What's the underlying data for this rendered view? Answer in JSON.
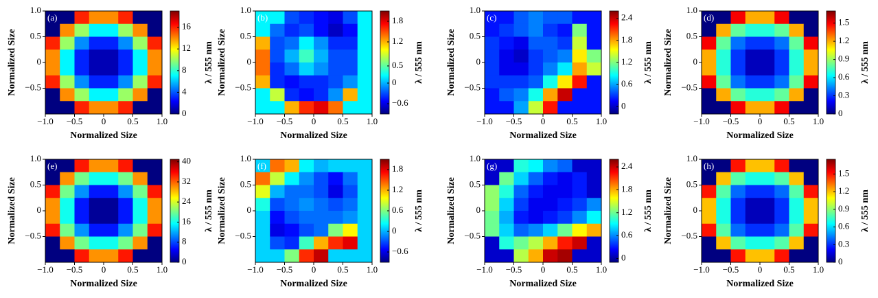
{
  "chart_data": [
    {
      "type": "heatmap",
      "label": "(a)",
      "xlabel": "Normalized Size",
      "ylabel": "Normalized Size",
      "colorbar_label": "λ / 555 nm",
      "colormap": "jet",
      "xlim": [
        -1,
        1
      ],
      "ylim": [
        -1,
        1
      ],
      "xticks": [
        {
          "value": -1,
          "label": "−1.0"
        },
        {
          "value": -0.5,
          "label": "−0.5"
        },
        0,
        0.5,
        {
          "value": 1,
          "label": "1.0"
        }
      ],
      "yticks": [
        {
          "value": -0.5,
          "label": "−0.5"
        },
        0,
        0.5,
        {
          "value": 1,
          "label": "1.0"
        }
      ],
      "clim": [
        0,
        19
      ],
      "cticks": [
        0,
        4,
        8,
        12,
        16
      ],
      "z": [
        [
          0,
          0,
          16,
          14,
          14,
          16,
          0,
          0
        ],
        [
          0,
          14,
          10,
          7,
          7,
          10,
          14,
          0
        ],
        [
          16,
          10,
          5,
          3,
          3,
          5,
          10,
          16
        ],
        [
          14,
          7,
          3,
          1,
          1,
          3,
          7,
          14
        ],
        [
          14,
          7,
          3,
          1,
          1,
          3,
          7,
          14
        ],
        [
          16,
          10,
          5,
          3,
          3,
          5,
          10,
          16
        ],
        [
          0,
          14,
          10,
          7,
          7,
          10,
          14,
          0
        ],
        [
          0,
          0,
          16,
          14,
          14,
          16,
          0,
          0
        ]
      ]
    },
    {
      "type": "heatmap",
      "label": "(b)",
      "xlabel": "Normalized Size",
      "ylabel": "Normalized Size",
      "colorbar_label": "λ / 555 nm",
      "colormap": "jet",
      "xlim": [
        -1,
        1
      ],
      "ylim": [
        -1,
        1
      ],
      "xticks": [
        {
          "value": -1,
          "label": "−1.0"
        },
        {
          "value": -0.5,
          "label": "−0.5"
        },
        0,
        0.5,
        {
          "value": 1,
          "label": "1.0"
        }
      ],
      "yticks": [
        {
          "value": -0.5,
          "label": "−0.5"
        },
        0,
        0.5,
        {
          "value": 1,
          "label": "1.0"
        }
      ],
      "clim": [
        -0.9,
        2.1
      ],
      "cticks": [
        {
          "value": -0.6,
          "label": "−0.6"
        },
        0,
        0.5,
        1.2,
        1.8
      ],
      "z": [
        [
          0.2,
          0.2,
          -0.3,
          -0.4,
          -0.5,
          -0.6,
          -0.3,
          0.2
        ],
        [
          0.2,
          -0.2,
          -0.4,
          -0.3,
          -0.5,
          -0.7,
          -0.5,
          0.2
        ],
        [
          1.2,
          -0.3,
          -0.2,
          0.2,
          -0.1,
          -0.4,
          -0.4,
          0.2
        ],
        [
          1.4,
          -0.3,
          0,
          0.4,
          0,
          -0.3,
          -0.3,
          0.2
        ],
        [
          1.4,
          -0.4,
          -0.2,
          0.1,
          -0.1,
          -0.3,
          -0.3,
          0.2
        ],
        [
          1.2,
          -0.4,
          -0.5,
          -0.4,
          -0.4,
          -0.3,
          -0.1,
          0.2
        ],
        [
          0.2,
          0.8,
          -0.4,
          -0.5,
          -0.4,
          -0.1,
          1.2,
          0.2
        ],
        [
          0.2,
          0.2,
          1.2,
          1.6,
          1.8,
          1.4,
          0.2,
          0.2
        ]
      ]
    },
    {
      "type": "heatmap",
      "label": "(c)",
      "xlabel": "Normalized Size",
      "ylabel": "Normalized Size",
      "colorbar_label": "λ / 555 nm",
      "colormap": "jet",
      "xlim": [
        -1,
        1
      ],
      "ylim": [
        -1,
        1
      ],
      "xticks": [
        {
          "value": -1,
          "label": "−1.0"
        },
        {
          "value": -0.5,
          "label": "−0.5"
        },
        0,
        0.5,
        {
          "value": 1,
          "label": "1.0"
        }
      ],
      "yticks": [
        {
          "value": -0.5,
          "label": "−0.5"
        },
        0,
        0.5,
        {
          "value": 1,
          "label": "1.0"
        }
      ],
      "clim": [
        -0.2,
        2.6
      ],
      "cticks": [
        0,
        0.6,
        1.2,
        1.8,
        2.4
      ],
      "z": [
        [
          0.2,
          0.2,
          0.4,
          0.5,
          0.4,
          0.4,
          0.2,
          0.2
        ],
        [
          0.2,
          0.3,
          0.4,
          0.5,
          0.3,
          0.2,
          1.2,
          0.2
        ],
        [
          0.3,
          0.2,
          0.1,
          0.4,
          0.4,
          0.3,
          1.4,
          0.2
        ],
        [
          0.3,
          0.1,
          0,
          0.3,
          0.4,
          0.5,
          1.6,
          1.2
        ],
        [
          0.3,
          0.1,
          0.1,
          0.3,
          0.5,
          0.8,
          1.8,
          1.4
        ],
        [
          0.3,
          0.3,
          0.3,
          0.4,
          0.9,
          1.6,
          2.2,
          0.2
        ],
        [
          0.2,
          0.4,
          0.5,
          0.9,
          1.8,
          2.4,
          0.2,
          0.2
        ],
        [
          0.2,
          0.2,
          0.6,
          1.4,
          2.2,
          0.2,
          0.2,
          0.2
        ]
      ]
    },
    {
      "type": "heatmap",
      "label": "(d)",
      "xlabel": "Normalized Size",
      "ylabel": "Normalized Size",
      "colorbar_label": "λ / 555 nm",
      "colormap": "jet",
      "xlim": [
        -1,
        1
      ],
      "ylim": [
        -1,
        1
      ],
      "xticks": [
        {
          "value": -1,
          "label": "−1.0"
        },
        {
          "value": -0.5,
          "label": "−0.5"
        },
        0,
        0.5,
        {
          "value": 1,
          "label": "1.0"
        }
      ],
      "yticks": [
        {
          "value": -0.5,
          "label": "−0.5"
        },
        0,
        0.5,
        {
          "value": 1,
          "label": "1.0"
        }
      ],
      "clim": [
        0,
        1.7
      ],
      "cticks": [
        0,
        0.3,
        0.6,
        0.9,
        1.2,
        1.5
      ],
      "z": [
        [
          0,
          0,
          1.5,
          1.2,
          1.2,
          1.5,
          0,
          0
        ],
        [
          0,
          1.2,
          0.8,
          0.7,
          0.7,
          0.8,
          1.2,
          0
        ],
        [
          1.5,
          0.8,
          0.4,
          0.3,
          0.3,
          0.4,
          0.8,
          1.5
        ],
        [
          1.2,
          0.7,
          0.3,
          0.1,
          0.1,
          0.3,
          0.7,
          1.2
        ],
        [
          1.2,
          0.7,
          0.3,
          0.1,
          0.1,
          0.3,
          0.7,
          1.2
        ],
        [
          1.5,
          0.8,
          0.4,
          0.3,
          0.3,
          0.4,
          0.8,
          1.5
        ],
        [
          0,
          1.2,
          0.8,
          0.7,
          0.7,
          0.8,
          1.2,
          0
        ],
        [
          0,
          0,
          1.5,
          1.2,
          1.2,
          1.5,
          0,
          0
        ]
      ]
    },
    {
      "type": "heatmap",
      "label": "(e)",
      "xlabel": "Normalized Size",
      "ylabel": "Normalized Size",
      "colorbar_label": "λ / 555 nm",
      "colormap": "jet",
      "xlim": [
        -1,
        1
      ],
      "ylim": [
        -1,
        1
      ],
      "xticks": [
        {
          "value": -1,
          "label": "−1.0"
        },
        {
          "value": -0.5,
          "label": "−0.5"
        },
        0,
        0.5,
        {
          "value": 1,
          "label": "1.0"
        }
      ],
      "yticks": [
        {
          "value": -0.5,
          "label": "−0.5"
        },
        0,
        0.5,
        {
          "value": 1,
          "label": "1.0"
        }
      ],
      "clim": [
        0,
        41
      ],
      "cticks": [
        0,
        8,
        16,
        24,
        32,
        40
      ],
      "z": [
        [
          0,
          0,
          35,
          30,
          30,
          35,
          0,
          0
        ],
        [
          0,
          30,
          20,
          16,
          16,
          20,
          30,
          0
        ],
        [
          35,
          20,
          11,
          6,
          6,
          11,
          20,
          35
        ],
        [
          30,
          16,
          6,
          1,
          1,
          6,
          16,
          30
        ],
        [
          30,
          16,
          6,
          1,
          1,
          6,
          16,
          30
        ],
        [
          35,
          20,
          11,
          6,
          6,
          11,
          20,
          35
        ],
        [
          0,
          30,
          20,
          16,
          16,
          20,
          30,
          0
        ],
        [
          0,
          0,
          35,
          30,
          30,
          35,
          0,
          0
        ]
      ]
    },
    {
      "type": "heatmap",
      "label": "(f)",
      "xlabel": "Normalized Size",
      "ylabel": "Normalized Size",
      "colorbar_label": "λ / 555 nm",
      "colormap": "jet",
      "xlim": [
        -1,
        1
      ],
      "ylim": [
        -1,
        1
      ],
      "xticks": [
        {
          "value": -1,
          "label": "−1.0"
        },
        {
          "value": -0.5,
          "label": "−0.5"
        },
        0,
        0.5,
        {
          "value": 1,
          "label": "1.0"
        }
      ],
      "yticks": [
        {
          "value": -0.5,
          "label": "−0.5"
        },
        0,
        0.5,
        {
          "value": 1,
          "label": "1.0"
        }
      ],
      "clim": [
        -0.9,
        2.1
      ],
      "cticks": [
        {
          "value": -0.6,
          "label": "−0.6"
        },
        0,
        0.6,
        1.2,
        1.8
      ],
      "z": [
        [
          0.1,
          1.4,
          1.2,
          0.2,
          0,
          0.1,
          0.1,
          0.1
        ],
        [
          1.4,
          0.8,
          0.2,
          -0.1,
          -0.3,
          -0.5,
          -0.2,
          0.1
        ],
        [
          0.9,
          0,
          -0.2,
          -0.2,
          -0.3,
          -0.6,
          -0.3,
          0.1
        ],
        [
          0.3,
          -0.3,
          -0.2,
          -0.1,
          -0.2,
          -0.3,
          -0.2,
          0.1
        ],
        [
          0.1,
          -0.5,
          -0.3,
          -0.2,
          -0.2,
          -0.2,
          -0.1,
          0.1
        ],
        [
          0.1,
          -0.6,
          -0.5,
          -0.3,
          -0.2,
          0.6,
          1.0,
          0.1
        ],
        [
          0.1,
          -0.3,
          -0.4,
          0.4,
          1.2,
          1.6,
          1.8,
          0.1
        ],
        [
          0.1,
          0.1,
          0.6,
          1.6,
          1.9,
          0.1,
          0.1,
          0.1
        ]
      ]
    },
    {
      "type": "heatmap",
      "label": "(g)",
      "xlabel": "Normalized Size",
      "ylabel": "Normalized Size",
      "colorbar_label": "λ / 555 nm",
      "colormap": "jet",
      "xlim": [
        -1,
        1
      ],
      "ylim": [
        -1,
        1
      ],
      "xticks": [
        {
          "value": -1,
          "label": "−1.0"
        },
        {
          "value": -0.5,
          "label": "−0.5"
        },
        0,
        0.5,
        {
          "value": 1,
          "label": "1.0"
        }
      ],
      "yticks": [
        {
          "value": -0.5,
          "label": "−0.5"
        },
        0,
        0.5,
        {
          "value": 1,
          "label": "1.0"
        }
      ],
      "clim": [
        -0.1,
        2.6
      ],
      "cticks": [
        0,
        0.6,
        1.2,
        1.8,
        2.4
      ],
      "z": [
        [
          0.1,
          0.1,
          1.0,
          0.9,
          0.6,
          0.5,
          0.1,
          0.1
        ],
        [
          0.1,
          1.2,
          0.8,
          0.5,
          0.3,
          0.2,
          0.3,
          0.1
        ],
        [
          1.3,
          1.0,
          0.5,
          0.3,
          0.2,
          0.2,
          0.3,
          0.1
        ],
        [
          1.3,
          0.8,
          0.4,
          0.2,
          0.2,
          0.3,
          0.4,
          0.6
        ],
        [
          1.2,
          0.7,
          0.3,
          0.2,
          0.3,
          0.4,
          0.6,
          0.9
        ],
        [
          1.2,
          0.8,
          0.5,
          0.6,
          0.8,
          1.2,
          1.6,
          1.8
        ],
        [
          0.1,
          1.0,
          1.2,
          1.4,
          1.8,
          2.2,
          2.4,
          0.1
        ],
        [
          0.1,
          0.1,
          1.4,
          1.8,
          2.4,
          2.5,
          0.1,
          0.1
        ]
      ]
    },
    {
      "type": "heatmap",
      "label": "(h)",
      "xlabel": "Normalized Size",
      "ylabel": "Normalized Size",
      "colorbar_label": "λ / 555 nm",
      "colormap": "jet",
      "xlim": [
        -1,
        1
      ],
      "ylim": [
        -1,
        1
      ],
      "xticks": [
        {
          "value": -1,
          "label": "−1.0"
        },
        {
          "value": -0.5,
          "label": "−0.5"
        },
        0,
        0.5,
        {
          "value": 1,
          "label": "1.0"
        }
      ],
      "yticks": [
        {
          "value": -0.5,
          "label": "−0.5"
        },
        0,
        0.5,
        {
          "value": 1,
          "label": "1.0"
        }
      ],
      "clim": [
        0,
        1.75
      ],
      "cticks": [
        0,
        0.3,
        0.6,
        0.9,
        1.2,
        1.5
      ],
      "z": [
        [
          0,
          0,
          1.5,
          1.2,
          1.2,
          1.5,
          0,
          0
        ],
        [
          0,
          1.2,
          0.8,
          0.7,
          0.7,
          0.8,
          1.2,
          0
        ],
        [
          1.5,
          0.8,
          0.4,
          0.3,
          0.3,
          0.4,
          0.8,
          1.5
        ],
        [
          1.2,
          0.7,
          0.3,
          0.1,
          0.1,
          0.3,
          0.7,
          1.2
        ],
        [
          1.2,
          0.7,
          0.3,
          0.1,
          0.1,
          0.3,
          0.7,
          1.2
        ],
        [
          1.5,
          0.8,
          0.4,
          0.3,
          0.3,
          0.4,
          0.8,
          1.5
        ],
        [
          0,
          1.2,
          0.8,
          0.7,
          0.7,
          0.8,
          1.2,
          0
        ],
        [
          0,
          0,
          1.5,
          1.2,
          1.2,
          1.5,
          0,
          0
        ]
      ]
    }
  ]
}
